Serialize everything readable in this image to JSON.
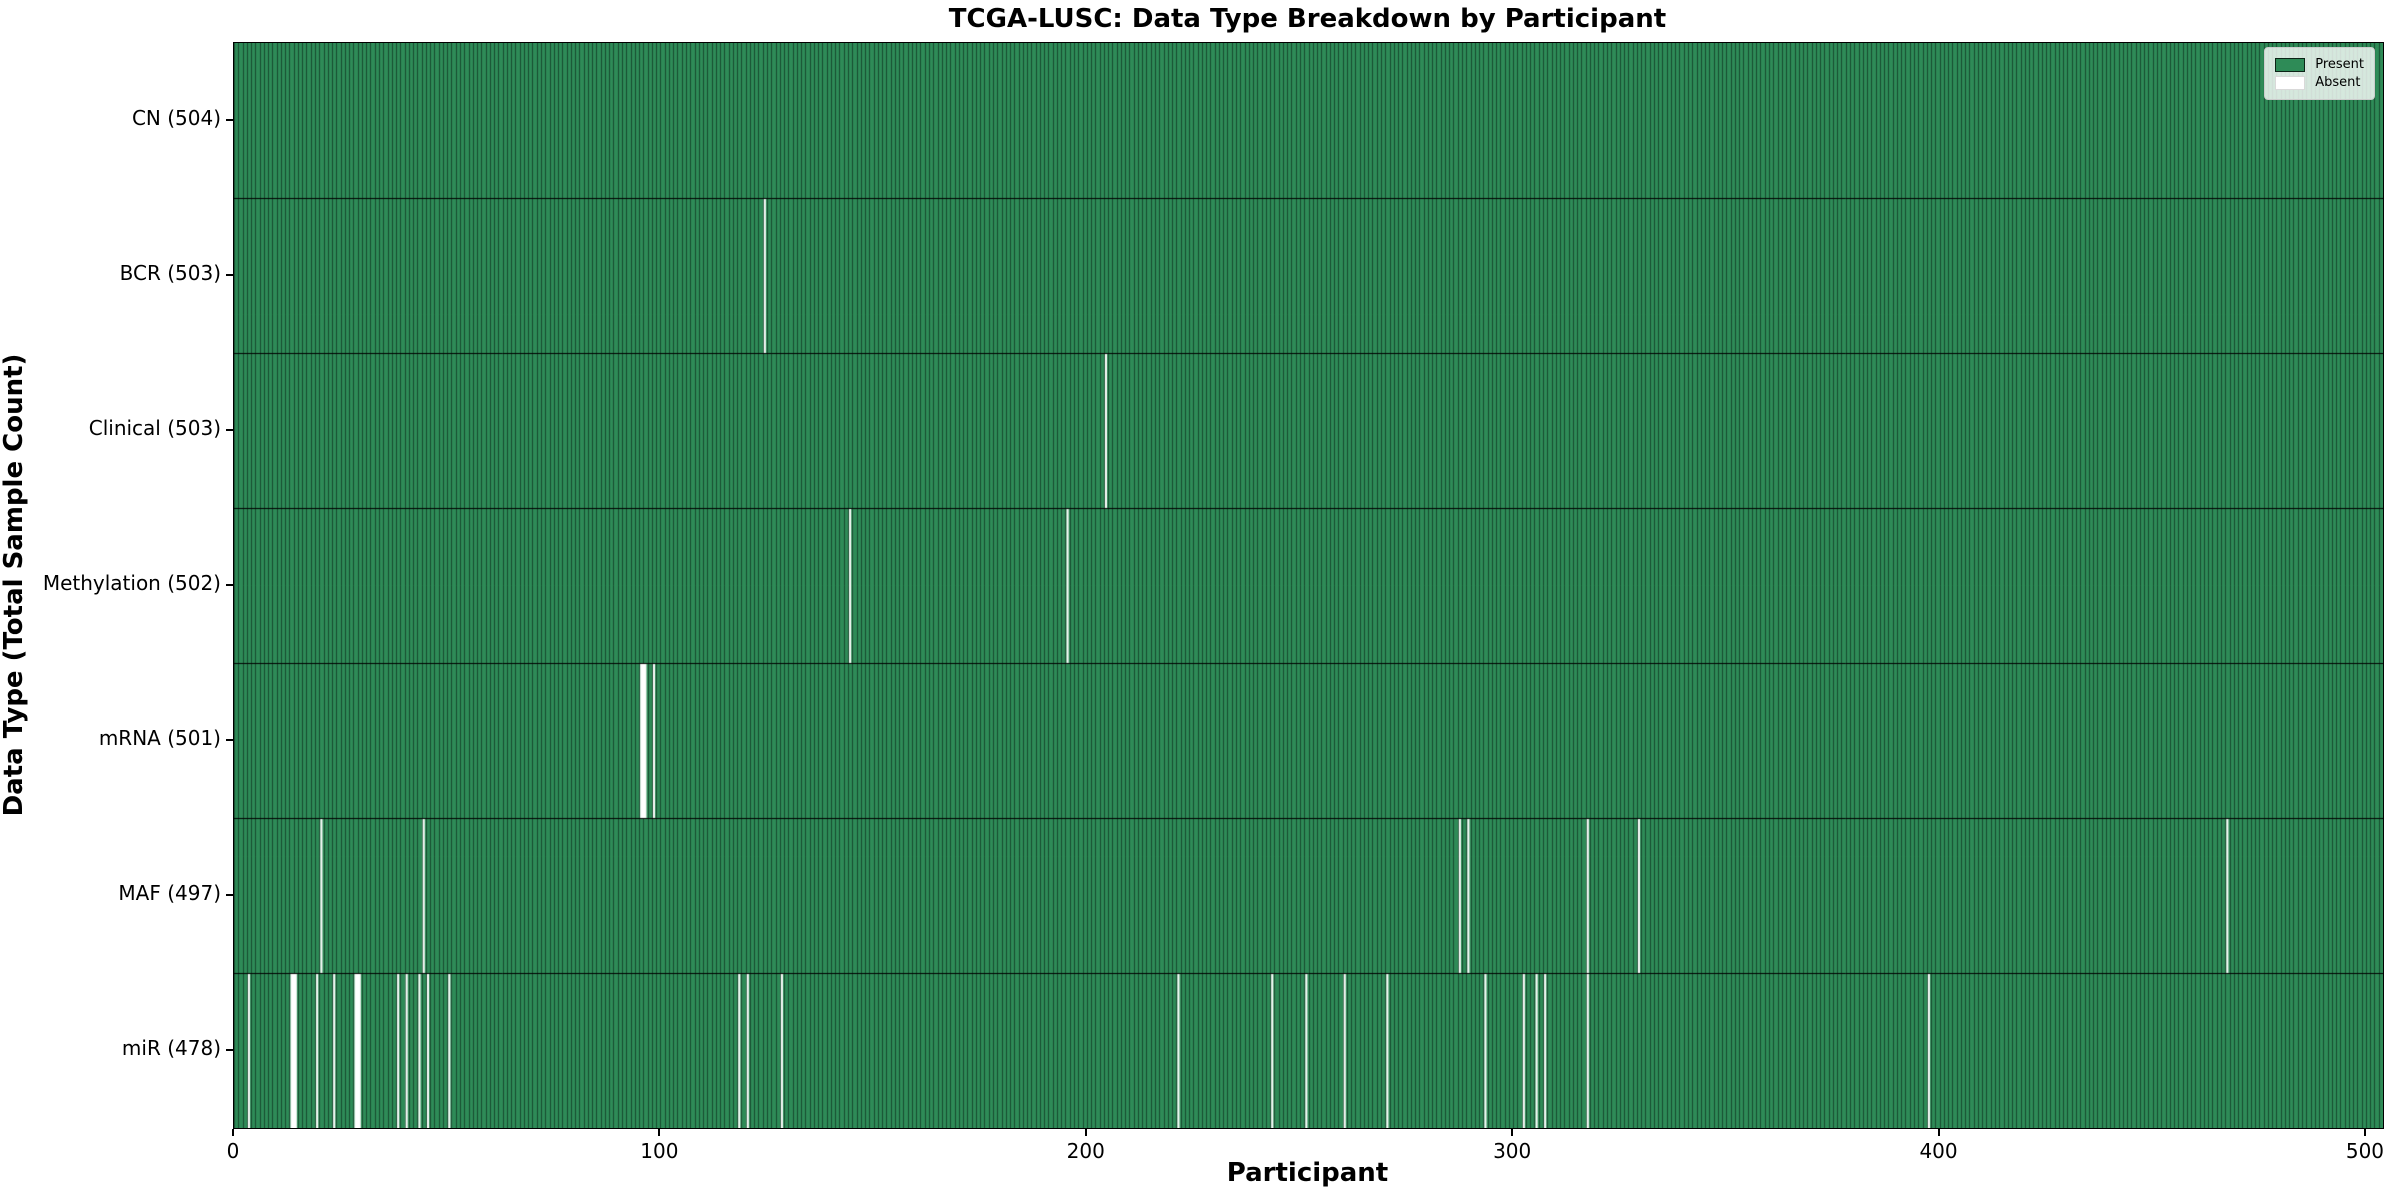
{
  "chart_data": {
    "type": "heatmap",
    "title": "TCGA-LUSC: Data Type Breakdown by Participant",
    "xlabel": "Participant",
    "ylabel": "Data Type (Total Sample Count)",
    "x_ticks": [
      0,
      100,
      200,
      300,
      400,
      500
    ],
    "xlim": [
      0,
      504
    ],
    "n_participants": 504,
    "grid": false,
    "legend": {
      "position": "upper right",
      "entries": [
        {
          "label": "Present",
          "color": "#2E8B57"
        },
        {
          "label": "Absent",
          "color": "#FFFFFF"
        }
      ]
    },
    "rows": [
      {
        "label": "CN (504)",
        "data_type": "CN",
        "present_count": 504,
        "absent_participants": []
      },
      {
        "label": "BCR (503)",
        "data_type": "BCR",
        "present_count": 503,
        "absent_participants": [
          124
        ]
      },
      {
        "label": "Clinical (503)",
        "data_type": "Clinical",
        "present_count": 503,
        "absent_participants": [
          204
        ]
      },
      {
        "label": "Methylation (502)",
        "data_type": "Methylation",
        "present_count": 502,
        "absent_participants": [
          144,
          195
        ]
      },
      {
        "label": "mRNA (501)",
        "data_type": "mRNA",
        "present_count": 501,
        "absent_participants": [
          95,
          96,
          98
        ]
      },
      {
        "label": "MAF (497)",
        "data_type": "MAF",
        "present_count": 497,
        "absent_participants": [
          20,
          44,
          287,
          289,
          317,
          329,
          467
        ]
      },
      {
        "label": "miR (478)",
        "data_type": "miR",
        "present_count": 478,
        "absent_participants": [
          3,
          13,
          14,
          19,
          23,
          28,
          29,
          38,
          40,
          43,
          45,
          50,
          118,
          120,
          128,
          221,
          243,
          251,
          260,
          270,
          293,
          302,
          305,
          307,
          317,
          397
        ]
      }
    ],
    "colors": {
      "present": "#2E8B57",
      "absent": "#FFFFFF",
      "bar_edge": "rgba(8,32,18,0.6)",
      "row_separator": "#000000",
      "figure_background": "#FFFFFF"
    }
  }
}
